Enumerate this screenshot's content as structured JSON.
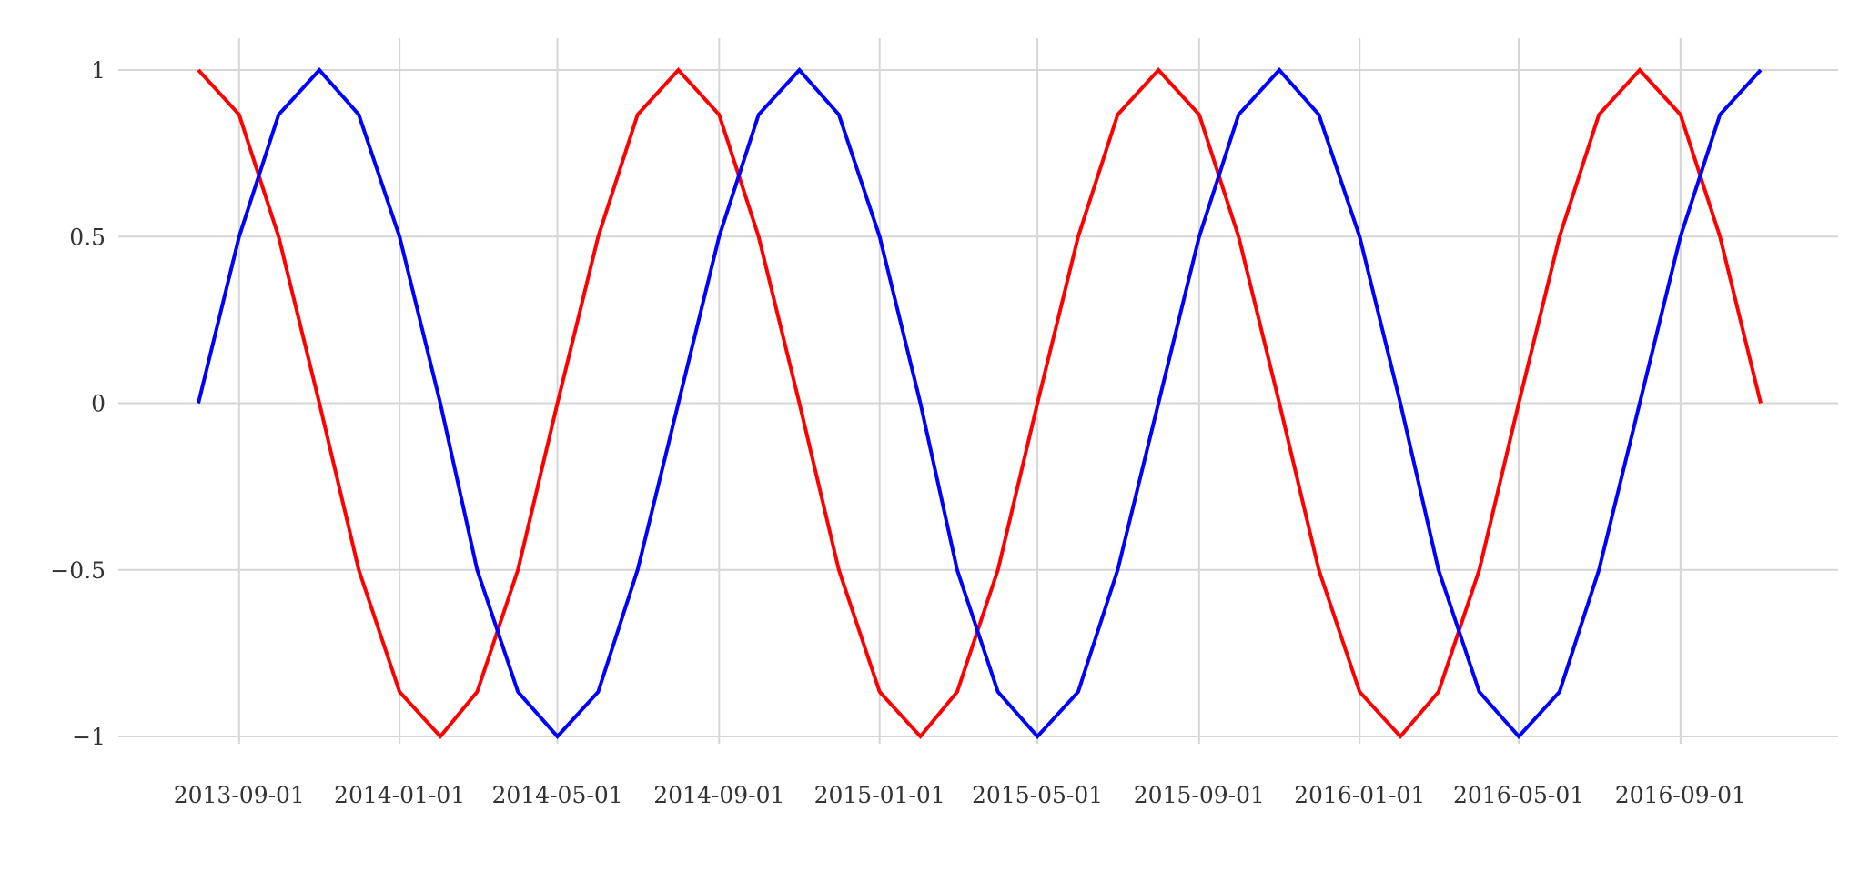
{
  "chart_data": {
    "type": "line",
    "title": "",
    "xlabel": "",
    "ylabel": "",
    "x_axis_type": "date",
    "x": [
      "2013-08-01",
      "2013-09-01",
      "2013-10-01",
      "2013-11-01",
      "2013-12-01",
      "2014-01-01",
      "2014-02-01",
      "2014-03-01",
      "2014-04-01",
      "2014-05-01",
      "2014-06-01",
      "2014-07-01",
      "2014-08-01",
      "2014-09-01",
      "2014-10-01",
      "2014-11-01",
      "2014-12-01",
      "2015-01-01",
      "2015-02-01",
      "2015-03-01",
      "2015-04-01",
      "2015-05-01",
      "2015-06-01",
      "2015-07-01",
      "2015-08-01",
      "2015-09-01",
      "2015-10-01",
      "2015-11-01",
      "2015-12-01",
      "2016-01-01",
      "2016-02-01",
      "2016-03-01",
      "2016-04-01",
      "2016-05-01",
      "2016-06-01",
      "2016-07-01",
      "2016-08-01",
      "2016-09-01",
      "2016-10-01",
      "2016-11-01"
    ],
    "series": [
      {
        "color": "#ff0000",
        "values": [
          1,
          0.866,
          0.5,
          0,
          -0.5,
          -0.866,
          -1,
          -0.866,
          -0.5,
          0,
          0.5,
          0.866,
          1,
          0.866,
          0.5,
          0,
          -0.5,
          -0.866,
          -1,
          -0.866,
          -0.5,
          0,
          0.5,
          0.866,
          1,
          0.866,
          0.5,
          0,
          -0.5,
          -0.866,
          -1,
          -0.866,
          -0.5,
          0,
          0.5,
          0.866,
          1,
          0.866,
          0.5,
          0
        ]
      },
      {
        "color": "#0000ff",
        "values": [
          0,
          0.5,
          0.866,
          1,
          0.866,
          0.5,
          0,
          -0.5,
          -0.866,
          -1,
          -0.866,
          -0.5,
          0,
          0.5,
          0.866,
          1,
          0.866,
          0.5,
          0,
          -0.5,
          -0.866,
          -1,
          -0.866,
          -0.5,
          0,
          0.5,
          0.866,
          1,
          0.866,
          0.5,
          0,
          -0.5,
          -0.866,
          -1,
          -0.866,
          -0.5,
          0,
          0.5,
          0.866,
          1
        ]
      }
    ],
    "x_ticks": [
      "2013-09-01",
      "2014-01-01",
      "2014-05-01",
      "2014-09-01",
      "2015-01-01",
      "2015-05-01",
      "2015-09-01",
      "2016-01-01",
      "2016-05-01",
      "2016-09-01"
    ],
    "y_ticks": [
      {
        "value": 1,
        "label": "1"
      },
      {
        "value": 0.5,
        "label": "0.5"
      },
      {
        "value": 0,
        "label": "0"
      },
      {
        "value": -0.5,
        "label": "−0.5"
      },
      {
        "value": -1,
        "label": "−1"
      }
    ],
    "ylim": [
      -1.05,
      1.1
    ],
    "grid": true,
    "legend": "none"
  }
}
